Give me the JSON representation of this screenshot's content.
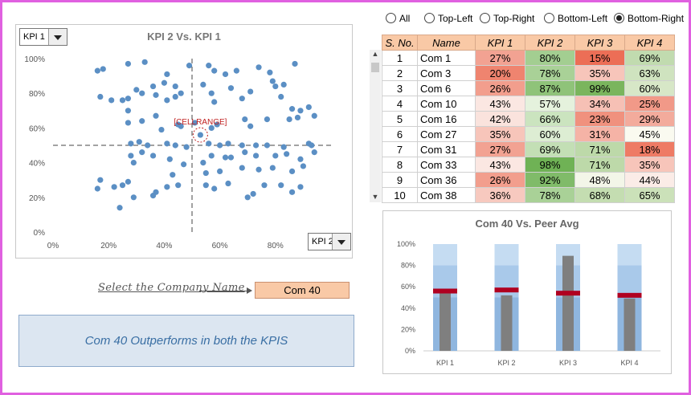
{
  "scatter": {
    "title": "KPI  2 Vs. KPI  1",
    "y_dropdown": "KPI 1",
    "x_dropdown": "KPI 2",
    "callout": "[CELLRANGE]",
    "y_ticks": [
      "100%",
      "80%",
      "60%",
      "40%",
      "20%",
      "0%"
    ],
    "x_ticks": [
      "0%",
      "20%",
      "40%",
      "60%",
      "80%"
    ],
    "point_color": "#5b8fc4",
    "chart_data": {
      "type": "scatter",
      "title": "KPI  2 Vs. KPI  1",
      "xlim": [
        0,
        1
      ],
      "ylim": [
        0,
        1
      ],
      "x_avg": 0.5,
      "y_avg": 0.5,
      "highlight": [
        0.53,
        0.56
      ],
      "points": [
        [
          0.16,
          0.93
        ],
        [
          0.18,
          0.94
        ],
        [
          0.27,
          0.97
        ],
        [
          0.33,
          0.98
        ],
        [
          0.36,
          0.84
        ],
        [
          0.4,
          0.86
        ],
        [
          0.41,
          0.91
        ],
        [
          0.44,
          0.84
        ],
        [
          0.46,
          0.8
        ],
        [
          0.49,
          0.96
        ],
        [
          0.56,
          0.96
        ],
        [
          0.58,
          0.93
        ],
        [
          0.62,
          0.91
        ],
        [
          0.66,
          0.93
        ],
        [
          0.74,
          0.95
        ],
        [
          0.78,
          0.92
        ],
        [
          0.79,
          0.87
        ],
        [
          0.83,
          0.85
        ],
        [
          0.87,
          0.97
        ],
        [
          0.17,
          0.78
        ],
        [
          0.21,
          0.76
        ],
        [
          0.25,
          0.76
        ],
        [
          0.27,
          0.77
        ],
        [
          0.3,
          0.82
        ],
        [
          0.32,
          0.8
        ],
        [
          0.37,
          0.79
        ],
        [
          0.41,
          0.76
        ],
        [
          0.44,
          0.78
        ],
        [
          0.54,
          0.85
        ],
        [
          0.57,
          0.8
        ],
        [
          0.58,
          0.75
        ],
        [
          0.64,
          0.83
        ],
        [
          0.68,
          0.77
        ],
        [
          0.71,
          0.81
        ],
        [
          0.8,
          0.84
        ],
        [
          0.82,
          0.78
        ],
        [
          0.86,
          0.71
        ],
        [
          0.89,
          0.7
        ],
        [
          0.92,
          0.72
        ],
        [
          0.94,
          0.67
        ],
        [
          0.27,
          0.7
        ],
        [
          0.27,
          0.63
        ],
        [
          0.32,
          0.64
        ],
        [
          0.37,
          0.67
        ],
        [
          0.39,
          0.59
        ],
        [
          0.45,
          0.62
        ],
        [
          0.46,
          0.61
        ],
        [
          0.51,
          0.63
        ],
        [
          0.57,
          0.6
        ],
        [
          0.59,
          0.62
        ],
        [
          0.69,
          0.65
        ],
        [
          0.71,
          0.61
        ],
        [
          0.77,
          0.65
        ],
        [
          0.85,
          0.65
        ],
        [
          0.88,
          0.66
        ],
        [
          0.31,
          0.52
        ],
        [
          0.34,
          0.5
        ],
        [
          0.28,
          0.51
        ],
        [
          0.41,
          0.51
        ],
        [
          0.44,
          0.5
        ],
        [
          0.48,
          0.49
        ],
        [
          0.56,
          0.51
        ],
        [
          0.6,
          0.5
        ],
        [
          0.63,
          0.51
        ],
        [
          0.68,
          0.5
        ],
        [
          0.73,
          0.5
        ],
        [
          0.77,
          0.5
        ],
        [
          0.83,
          0.49
        ],
        [
          0.92,
          0.51
        ],
        [
          0.94,
          0.46
        ],
        [
          0.93,
          0.5
        ],
        [
          0.28,
          0.44
        ],
        [
          0.32,
          0.46
        ],
        [
          0.36,
          0.44
        ],
        [
          0.29,
          0.4
        ],
        [
          0.42,
          0.42
        ],
        [
          0.57,
          0.44
        ],
        [
          0.64,
          0.43
        ],
        [
          0.69,
          0.46
        ],
        [
          0.73,
          0.44
        ],
        [
          0.8,
          0.44
        ],
        [
          0.84,
          0.45
        ],
        [
          0.89,
          0.42
        ],
        [
          0.43,
          0.33
        ],
        [
          0.47,
          0.39
        ],
        [
          0.54,
          0.4
        ],
        [
          0.55,
          0.34
        ],
        [
          0.6,
          0.35
        ],
        [
          0.62,
          0.43
        ],
        [
          0.68,
          0.37
        ],
        [
          0.74,
          0.36
        ],
        [
          0.79,
          0.37
        ],
        [
          0.86,
          0.35
        ],
        [
          0.9,
          0.38
        ],
        [
          0.17,
          0.3
        ],
        [
          0.22,
          0.26
        ],
        [
          0.25,
          0.27
        ],
        [
          0.27,
          0.29
        ],
        [
          0.29,
          0.2
        ],
        [
          0.37,
          0.23
        ],
        [
          0.41,
          0.26
        ],
        [
          0.45,
          0.27
        ],
        [
          0.55,
          0.27
        ],
        [
          0.58,
          0.25
        ],
        [
          0.63,
          0.28
        ],
        [
          0.7,
          0.2
        ],
        [
          0.72,
          0.22
        ],
        [
          0.76,
          0.27
        ],
        [
          0.82,
          0.27
        ],
        [
          0.86,
          0.23
        ],
        [
          0.89,
          0.26
        ],
        [
          0.16,
          0.25
        ],
        [
          0.24,
          0.14
        ],
        [
          0.36,
          0.21
        ]
      ]
    }
  },
  "view_options": [
    "All",
    "Top-Left",
    "Top-Right",
    "Bottom-Left",
    "Bottom-Right"
  ],
  "view_selected": "Bottom-Right",
  "table": {
    "headers": [
      "S. No.",
      "Name",
      "KPI 1",
      "KPI 2",
      "KPI 3",
      "KPI 4"
    ],
    "rows": [
      [
        "1",
        "Com 1",
        "27%",
        "80%",
        "15%",
        "69%"
      ],
      [
        "2",
        "Com 3",
        "20%",
        "78%",
        "35%",
        "63%"
      ],
      [
        "3",
        "Com 6",
        "26%",
        "87%",
        "99%",
        "60%"
      ],
      [
        "4",
        "Com 10",
        "43%",
        "57%",
        "34%",
        "25%"
      ],
      [
        "5",
        "Com 16",
        "42%",
        "66%",
        "23%",
        "29%"
      ],
      [
        "6",
        "Com 27",
        "35%",
        "60%",
        "31%",
        "45%"
      ],
      [
        "7",
        "Com 31",
        "27%",
        "69%",
        "71%",
        "18%"
      ],
      [
        "8",
        "Com 33",
        "43%",
        "98%",
        "71%",
        "35%"
      ],
      [
        "9",
        "Com 36",
        "26%",
        "92%",
        "48%",
        "44%"
      ],
      [
        "10",
        "Com 38",
        "36%",
        "78%",
        "68%",
        "65%"
      ]
    ]
  },
  "select_label": "Select the Company Name",
  "selected_company": "Com 40",
  "message": "Com 40 Outperforms in both the KPIS",
  "bullet": {
    "title": "Com 40 Vs. Peer Avg",
    "y_ticks": [
      "100%",
      "80%",
      "60%",
      "40%",
      "20%",
      "0%"
    ],
    "chart_data": {
      "type": "bar",
      "title": "Com 40 Vs. Peer Avg",
      "categories": [
        "KPI 1",
        "KPI 2",
        "KPI 3",
        "KPI 4"
      ],
      "ylim": [
        0,
        1
      ],
      "series": [
        {
          "name": "Com 40",
          "values": [
            0.55,
            0.52,
            0.89,
            0.49
          ]
        },
        {
          "name": "Peer Avg",
          "values": [
            0.56,
            0.57,
            0.54,
            0.52
          ]
        }
      ],
      "bands": [
        0.5,
        0.8,
        1.0
      ]
    }
  }
}
